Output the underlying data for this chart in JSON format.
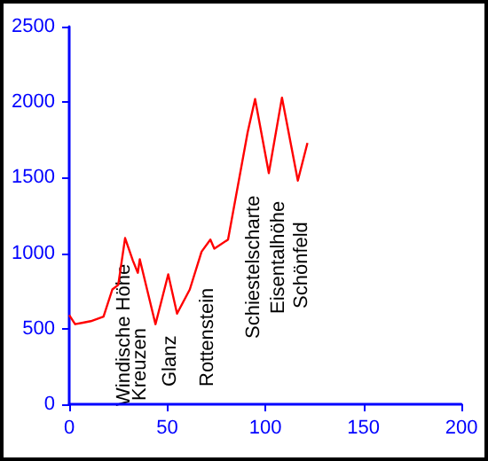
{
  "chart_data": {
    "type": "line",
    "x": [
      0,
      3,
      7,
      11,
      17.5,
      22,
      25,
      28.5,
      32.5,
      35,
      36,
      44,
      50.5,
      55,
      61.5,
      67.5,
      72,
      74,
      81,
      91,
      94.8,
      101.8,
      108.5,
      116.6,
      121.5
    ],
    "series": [
      {
        "color": "#ff0000",
        "values": [
          590,
          530,
          540,
          550,
          580,
          760,
          790,
          1100,
          950,
          870,
          960,
          530,
          860,
          600,
          760,
          1010,
          1090,
          1030,
          1090,
          1800,
          2020,
          1530,
          2030,
          1480,
          1730
        ]
      }
    ],
    "xlim": [
      0,
      200
    ],
    "xticks": [
      0,
      50,
      100,
      150,
      200
    ],
    "ylim": [
      0,
      2500
    ],
    "yticks": [
      0,
      500,
      1000,
      1500,
      2000,
      2500
    ],
    "grid": false,
    "marker": "none",
    "line_style": "solid",
    "annotations": [
      "Windische Höhe",
      "Kreuzen",
      "Glanz",
      "Rottenstein",
      "Schiestelscharte",
      "Eisentalhöhe",
      "Schönfeld"
    ]
  }
}
